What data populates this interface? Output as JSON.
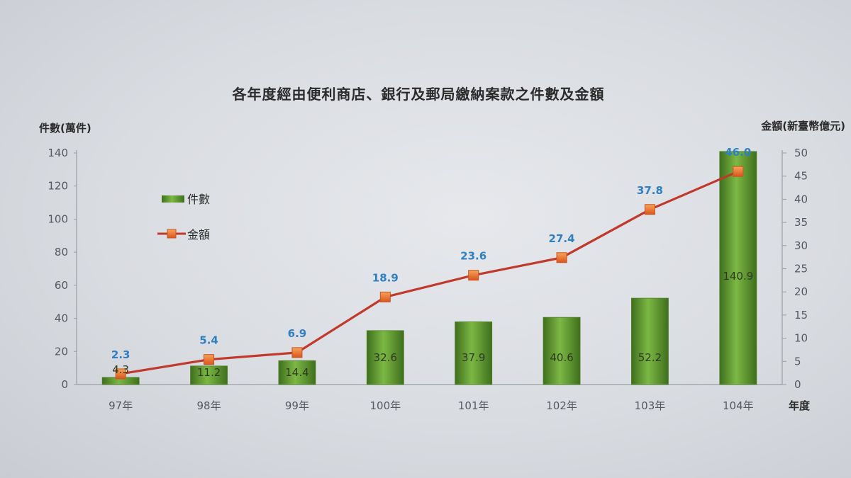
{
  "chart_data": {
    "type": "bar+line",
    "title": "各年度經由便利商店、銀行及郵局繳納案款之件數及金額",
    "ylabel_left": "件數(萬件)",
    "ylabel_right": "金額(新臺幣億元)",
    "xlabel": "年度",
    "categories": [
      "97年",
      "98年",
      "99年",
      "100年",
      "101年",
      "102年",
      "103年",
      "104年"
    ],
    "series": [
      {
        "name": "件數",
        "type": "bar",
        "axis": "left",
        "values": [
          4.3,
          11.2,
          14.4,
          32.6,
          37.9,
          40.6,
          52.2,
          140.9
        ],
        "labels": [
          "4.3",
          "11.2",
          "14.4",
          "32.6",
          "37.9",
          "40.6",
          "52.2",
          "140.9"
        ]
      },
      {
        "name": "金額",
        "type": "line",
        "axis": "right",
        "values": [
          2.3,
          5.4,
          6.9,
          18.9,
          23.6,
          27.4,
          37.8,
          46.0
        ],
        "labels": [
          "2.3",
          "5.4",
          "6.9",
          "18.9",
          "23.6",
          "27.4",
          "37.8",
          "46.0"
        ]
      }
    ],
    "ylim_left": [
      0,
      140
    ],
    "yticks_left": [
      "0",
      "20",
      "40",
      "60",
      "80",
      "100",
      "120",
      "140"
    ],
    "ylim_right": [
      0,
      50
    ],
    "yticks_right": [
      "0",
      "5",
      "10",
      "15",
      "20",
      "25",
      "30",
      "35",
      "40",
      "45",
      "50"
    ],
    "legend_position": "top-left",
    "grid": false,
    "colors": {
      "bar": "#6ea43c",
      "bar_dark": "#3f6f1d",
      "line": "#c0392b",
      "marker": "#f07a2a",
      "line_label": "#2f7fc4"
    }
  }
}
